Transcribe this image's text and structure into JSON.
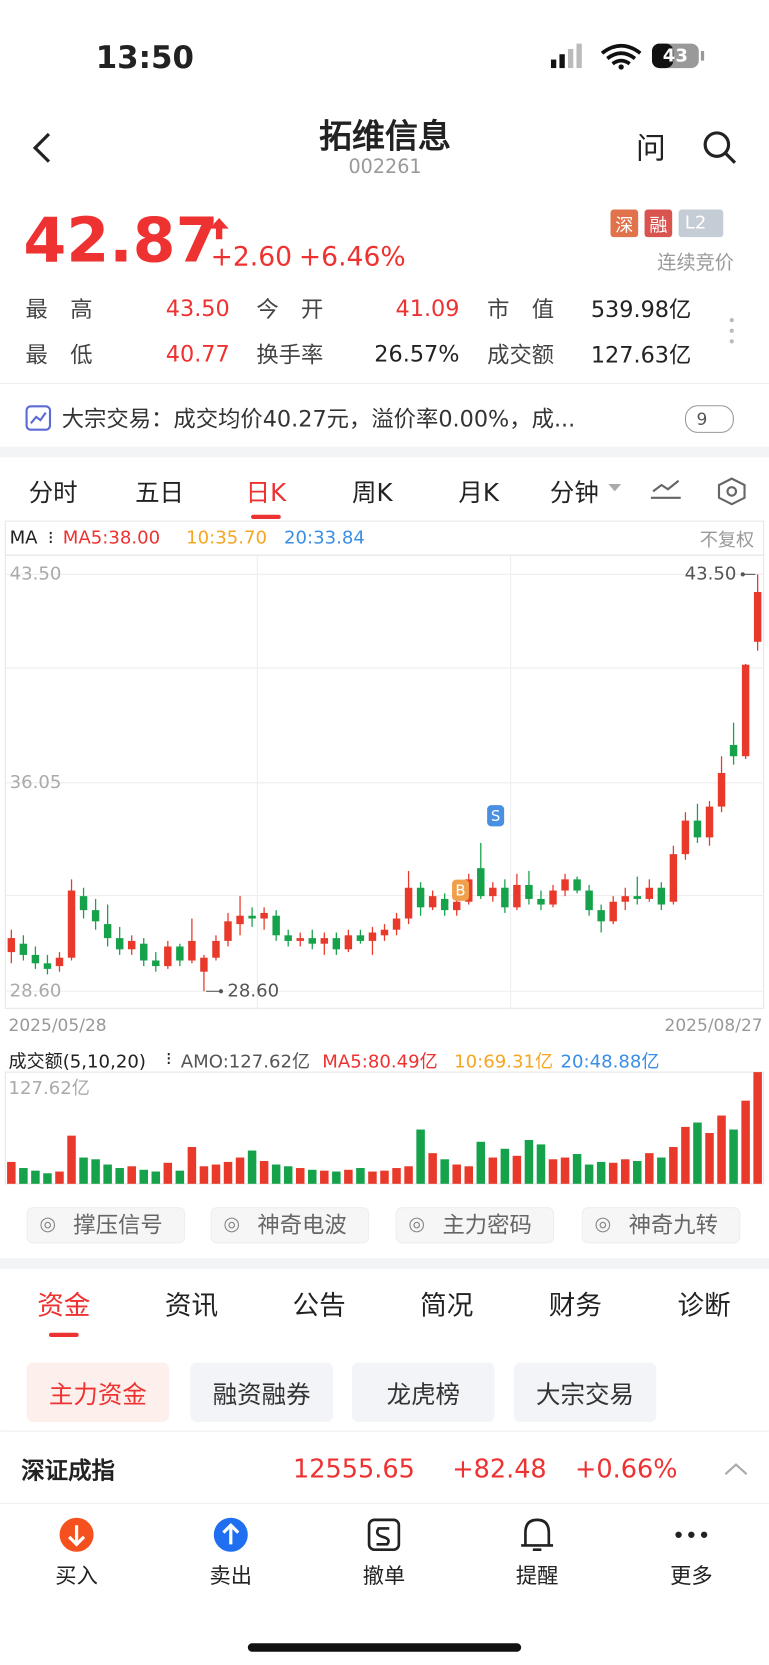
{
  "status": {
    "time": "13:50",
    "battery": "43"
  },
  "header": {
    "title": "拓维信息",
    "code": "002261",
    "ask": "问"
  },
  "quote": {
    "price": "42.87",
    "change": "+2.60",
    "pct": "+6.46%",
    "badges": [
      "深",
      "融",
      "L2"
    ],
    "auction": "连续竞价"
  },
  "stats": [
    [
      "最　高",
      "43.50"
    ],
    [
      "今　开",
      "41.09"
    ],
    [
      "市　值",
      "539.98亿"
    ],
    [
      "最　低",
      "40.77"
    ],
    [
      "换手率",
      "26.57%"
    ],
    [
      "成交额",
      "127.63亿"
    ]
  ],
  "block_trade": {
    "text": "大宗交易：成交均价40.27元，溢价率0.00%，成...",
    "count": "9"
  },
  "tabs": [
    "分时",
    "五日",
    "日K",
    "周K",
    "月K",
    "分钟"
  ],
  "ma_legend": {
    "title": "MA",
    "ma5": "MA5:38.00",
    "ma10": "10:35.70",
    "ma20": "20:33.84",
    "adjust": "不复权"
  },
  "chart_data": [
    {
      "type": "candlestick",
      "ylim": [
        28.6,
        43.5
      ],
      "yticks": [
        {
          "value": 43.5,
          "label": "43.50"
        },
        36.05,
        {
          "value": 28.6,
          "label": "28.60"
        }
      ],
      "high_label": "43.50",
      "low_label": "28.60",
      "markers": [
        "S",
        "B"
      ],
      "x_start": "2025/05/28",
      "x_end": "2025/08/27",
      "candles": [
        [
          30.0,
          30.8,
          29.6,
          30.5
        ],
        [
          30.3,
          30.6,
          29.7,
          29.9
        ],
        [
          29.9,
          30.2,
          29.4,
          29.6
        ],
        [
          29.6,
          29.9,
          29.2,
          29.4
        ],
        [
          29.5,
          30.0,
          29.3,
          29.8
        ],
        [
          29.8,
          32.6,
          29.7,
          32.2
        ],
        [
          32.0,
          32.3,
          31.2,
          31.5
        ],
        [
          31.5,
          31.9,
          30.8,
          31.1
        ],
        [
          31.0,
          31.7,
          30.2,
          30.5
        ],
        [
          30.5,
          30.9,
          29.9,
          30.1
        ],
        [
          30.1,
          30.6,
          29.9,
          30.4
        ],
        [
          30.3,
          30.5,
          29.5,
          29.7
        ],
        [
          29.7,
          30.0,
          29.3,
          29.5
        ],
        [
          29.5,
          30.4,
          29.4,
          30.2
        ],
        [
          30.2,
          30.3,
          29.5,
          29.7
        ],
        [
          29.7,
          31.2,
          29.6,
          30.4
        ],
        [
          29.3,
          29.9,
          28.6,
          29.8
        ],
        [
          29.8,
          30.6,
          29.7,
          30.4
        ],
        [
          30.4,
          31.4,
          30.2,
          31.1
        ],
        [
          31.0,
          32.0,
          30.6,
          31.3
        ],
        [
          31.3,
          31.6,
          30.9,
          31.2
        ],
        [
          31.2,
          31.6,
          30.8,
          31.4
        ],
        [
          31.3,
          31.5,
          30.4,
          30.6
        ],
        [
          30.6,
          30.8,
          30.2,
          30.4
        ],
        [
          30.4,
          30.7,
          30.2,
          30.5
        ],
        [
          30.5,
          30.8,
          30.1,
          30.3
        ],
        [
          30.3,
          30.7,
          29.9,
          30.5
        ],
        [
          30.5,
          30.7,
          29.9,
          30.1
        ],
        [
          30.1,
          30.8,
          30.0,
          30.6
        ],
        [
          30.6,
          30.8,
          30.3,
          30.4
        ],
        [
          30.4,
          30.9,
          29.9,
          30.7
        ],
        [
          30.6,
          31.0,
          30.4,
          30.8
        ],
        [
          30.8,
          31.4,
          30.6,
          31.2
        ],
        [
          31.2,
          32.9,
          31.0,
          32.3
        ],
        [
          32.3,
          32.5,
          31.3,
          31.6
        ],
        [
          31.6,
          32.2,
          31.5,
          32.0
        ],
        [
          31.9,
          32.1,
          31.3,
          31.5
        ],
        [
          31.5,
          31.9,
          31.3,
          31.8
        ],
        [
          31.8,
          32.8,
          31.7,
          32.6
        ],
        [
          33.0,
          33.9,
          31.9,
          32.0
        ],
        [
          32.0,
          32.5,
          31.8,
          32.3
        ],
        [
          32.3,
          32.6,
          31.4,
          31.6
        ],
        [
          31.6,
          32.8,
          31.5,
          32.4
        ],
        [
          32.4,
          32.9,
          31.7,
          31.9
        ],
        [
          31.9,
          32.2,
          31.5,
          31.7
        ],
        [
          31.7,
          32.4,
          31.6,
          32.2
        ],
        [
          32.2,
          32.8,
          32.0,
          32.6
        ],
        [
          32.6,
          32.7,
          32.1,
          32.2
        ],
        [
          32.2,
          32.4,
          31.3,
          31.5
        ],
        [
          31.5,
          31.7,
          30.7,
          31.1
        ],
        [
          31.1,
          32.0,
          31.0,
          31.8
        ],
        [
          31.8,
          32.3,
          31.5,
          32.0
        ],
        [
          32.0,
          32.7,
          31.7,
          31.9
        ],
        [
          31.9,
          32.6,
          31.8,
          32.3
        ],
        [
          32.3,
          32.5,
          31.5,
          31.7
        ],
        [
          31.8,
          33.8,
          31.7,
          33.5
        ],
        [
          33.5,
          35.0,
          33.3,
          34.7
        ],
        [
          34.7,
          35.3,
          33.9,
          34.1
        ],
        [
          34.1,
          35.4,
          33.8,
          35.2
        ],
        [
          35.2,
          37.0,
          35.0,
          36.4
        ],
        [
          37.4,
          38.2,
          36.7,
          37.0
        ],
        [
          37.0,
          40.3,
          36.9,
          40.27
        ],
        [
          41.09,
          43.5,
          40.77,
          42.87
        ]
      ]
    },
    {
      "type": "bar",
      "title": "成交额(5,10,20)",
      "amo": "AMO:127.62亿",
      "ma5": "MA5:80.49亿",
      "ma10": "10:69.31亿",
      "ma20": "20:48.88亿",
      "ylim": [
        0,
        127.62
      ],
      "yticks": [
        {
          "value": 127.62,
          "label": "127.62亿"
        }
      ],
      "values": [
        25,
        18,
        15,
        12,
        14,
        55,
        30,
        28,
        22,
        18,
        20,
        16,
        14,
        24,
        15,
        42,
        20,
        22,
        25,
        30,
        38,
        26,
        22,
        20,
        18,
        16,
        15,
        14,
        16,
        18,
        14,
        15,
        18,
        20,
        62,
        35,
        28,
        22,
        20,
        48,
        30,
        40,
        32,
        50,
        45,
        28,
        30,
        34,
        22,
        25,
        24,
        28,
        26,
        35,
        30,
        42,
        65,
        70,
        58,
        78,
        62,
        95,
        127.62
      ]
    }
  ],
  "tools": [
    "撑压信号",
    "神奇电波",
    "主力密码",
    "神奇九转"
  ],
  "info_tabs": [
    "资金",
    "资讯",
    "公告",
    "简况",
    "财务",
    "诊断"
  ],
  "sub_tabs": [
    "主力资金",
    "融资融券",
    "龙虎榜",
    "大宗交易"
  ],
  "index": {
    "name": "深证成指",
    "value": "12555.65",
    "change": "+82.48",
    "pct": "+0.66%"
  },
  "bottom": [
    "买入",
    "卖出",
    "撤单",
    "提醒",
    "更多"
  ]
}
